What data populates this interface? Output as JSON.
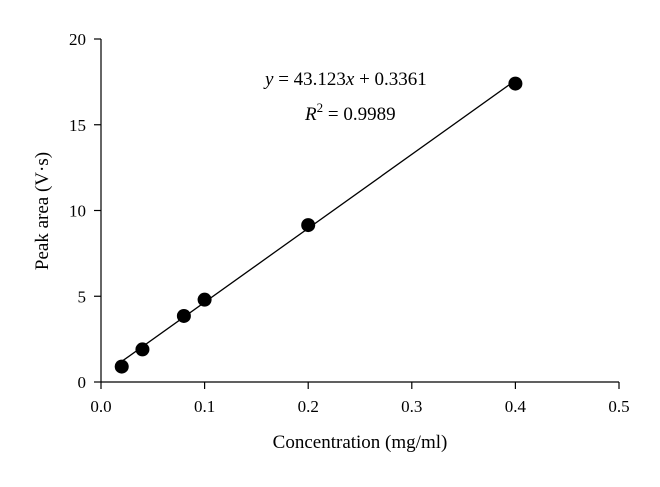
{
  "chart_data": {
    "type": "scatter",
    "xlabel": "Concentration (mg/ml)",
    "ylabel": "Peak area (V·s)",
    "xlim": [
      0,
      0.5
    ],
    "ylim": [
      0,
      20
    ],
    "xticks": [
      "0.0",
      "0.1",
      "0.2",
      "0.3",
      "0.4",
      "0.5"
    ],
    "yticks": [
      "0",
      "5",
      "10",
      "15",
      "20"
    ],
    "grid": false,
    "series": [
      {
        "x": [
          0.02,
          0.04,
          0.08,
          0.1,
          0.2,
          0.4
        ],
        "y": [
          0.9,
          1.9,
          3.85,
          4.8,
          9.15,
          17.4
        ]
      }
    ],
    "fit": {
      "slope": 43.123,
      "intercept": 0.3361,
      "x_range": [
        0.02,
        0.4
      ]
    },
    "annotations": {
      "equation": {
        "y": "y",
        "eq": " = 43.123",
        "x": "x",
        "rest": " + 0.3361"
      },
      "r2": {
        "r": "R",
        "sup": "2",
        "rest": " = 0.9989"
      }
    }
  }
}
